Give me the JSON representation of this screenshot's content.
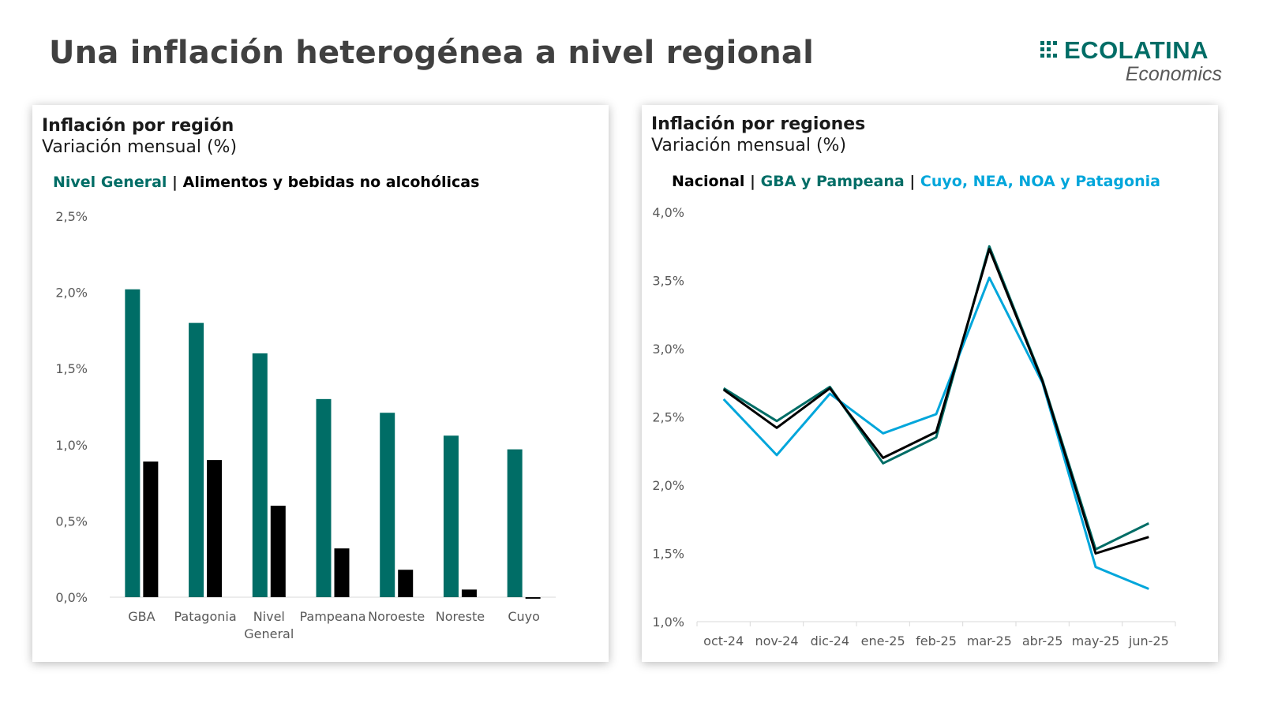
{
  "page": {
    "title": "Una inflación heterogénea a nivel regional"
  },
  "logo": {
    "name": "ECOLATINA",
    "subtitle": "Economics",
    "color": "#006d66"
  },
  "left_panel": {
    "title": "Inflación por región",
    "subtitle": "Variación mensual (%)",
    "legend": [
      {
        "label": "Nivel General",
        "color": "#006d66"
      },
      {
        "label": "Alimentos y bebidas no alcohólicas",
        "color": "#000000"
      }
    ],
    "separator": "|"
  },
  "right_panel": {
    "title": "Inflación por regiones",
    "subtitle": "Variación mensual (%)",
    "legend": [
      {
        "label": "Nacional",
        "color": "#000000"
      },
      {
        "label": "GBA y Pampeana",
        "color": "#006d66"
      },
      {
        "label": "Cuyo, NEA, NOA y Patagonia",
        "color": "#00a6db"
      }
    ],
    "separator": "|"
  },
  "chart_data": [
    {
      "type": "bar",
      "categories": [
        "GBA",
        "Patagonia",
        "Nivel General",
        "Pampeana",
        "Noroeste",
        "Noreste",
        "Cuyo"
      ],
      "category_lines": [
        [
          "GBA"
        ],
        [
          "Patagonia"
        ],
        [
          "Nivel",
          "General"
        ],
        [
          "Pampeana"
        ],
        [
          "Noroeste"
        ],
        [
          "Noreste"
        ],
        [
          "Cuyo"
        ]
      ],
      "series": [
        {
          "name": "Nivel General",
          "color": "#006d66",
          "values": [
            2.02,
            1.8,
            1.6,
            1.3,
            1.21,
            1.06,
            0.97
          ]
        },
        {
          "name": "Alimentos y bebidas no alcohólicas",
          "color": "#000000",
          "values": [
            0.89,
            0.9,
            0.6,
            0.32,
            0.18,
            0.05,
            -0.01
          ]
        }
      ],
      "ylim": [
        0,
        2.5
      ],
      "yticks": [
        0,
        0.5,
        1.0,
        1.5,
        2.0,
        2.5
      ],
      "ytick_labels": [
        "0,0%",
        "0,5%",
        "1,0%",
        "1,5%",
        "2,0%",
        "2,5%"
      ],
      "grid": false
    },
    {
      "type": "line",
      "x": [
        "oct-24",
        "nov-24",
        "dic-24",
        "ene-25",
        "feb-25",
        "mar-25",
        "abr-25",
        "may-25",
        "jun-25"
      ],
      "series": [
        {
          "name": "GBA y Pampeana",
          "color": "#006d66",
          "values": [
            2.71,
            2.47,
            2.72,
            2.16,
            2.35,
            3.75,
            2.77,
            1.53,
            1.72
          ]
        },
        {
          "name": "Cuyo, NEA, NOA y Patagonia",
          "color": "#00a6db",
          "values": [
            2.63,
            2.22,
            2.67,
            2.38,
            2.52,
            3.52,
            2.75,
            1.4,
            1.24
          ]
        },
        {
          "name": "Nacional",
          "color": "#000000",
          "values": [
            2.7,
            2.42,
            2.71,
            2.2,
            2.39,
            3.73,
            2.76,
            1.5,
            1.62
          ]
        }
      ],
      "ylim": [
        1.0,
        4.0
      ],
      "yticks": [
        1.0,
        1.5,
        2.0,
        2.5,
        3.0,
        3.5,
        4.0
      ],
      "ytick_labels": [
        "1,0%",
        "1,5%",
        "2,0%",
        "2,5%",
        "3,0%",
        "3,5%",
        "4,0%"
      ],
      "grid": false
    }
  ]
}
